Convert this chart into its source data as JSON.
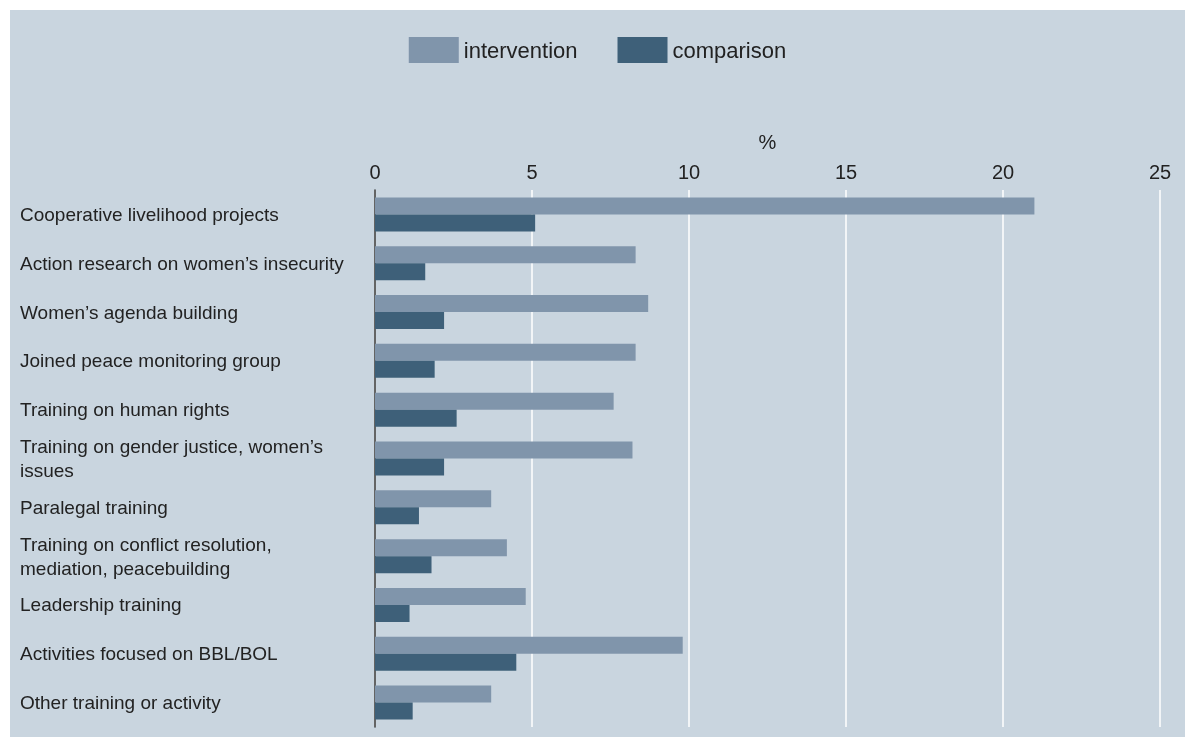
{
  "chart_data": {
    "type": "bar",
    "orientation": "horizontal",
    "xlabel": "%",
    "categories": [
      "Cooperative livelihood projects",
      "Action research on women’s insecurity",
      "Women’s agenda building",
      "Joined peace monitoring group",
      "Training on human rights",
      "Training on gender justice, women’s issues",
      "Paralegal training",
      "Training on conflict resolution, mediation, peacebuilding",
      "Leadership training",
      "Activities focused on BBL/BOL",
      "Other training or activity"
    ],
    "series": [
      {
        "name": "intervention",
        "color": "#8095ab",
        "values": [
          21.0,
          8.3,
          8.7,
          8.3,
          7.6,
          8.2,
          3.7,
          4.2,
          4.8,
          9.8,
          3.7
        ]
      },
      {
        "name": "comparison",
        "color": "#3e6079",
        "values": [
          5.1,
          1.6,
          2.2,
          1.9,
          2.6,
          2.2,
          1.4,
          1.8,
          1.1,
          4.5,
          1.2
        ]
      }
    ],
    "xlim": [
      0,
      25
    ],
    "xticks": [
      0,
      5,
      10,
      15,
      20,
      25
    ],
    "grid": "x",
    "legend": "top"
  }
}
